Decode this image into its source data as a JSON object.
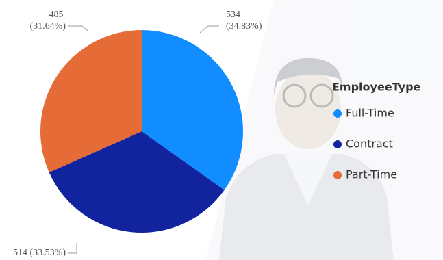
{
  "chart_data": {
    "type": "pie",
    "categories": [
      "Full-Time",
      "Contract",
      "Part-Time"
    ],
    "values": [
      534,
      514,
      485
    ],
    "value_labels": [
      "534 (34.83%)",
      "514 (33.53%)",
      "485 (31.64%)"
    ],
    "colors": [
      "#118DFF",
      "#12239E",
      "#E66C37"
    ],
    "legend_title": "EmployeeType"
  }
}
